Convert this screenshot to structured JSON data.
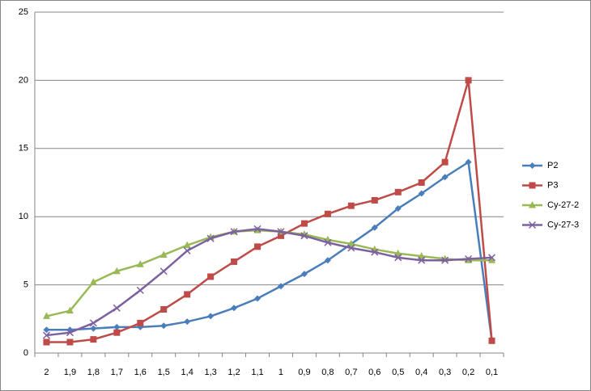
{
  "chart_data": {
    "type": "line",
    "categories": [
      "2",
      "1,9",
      "1,8",
      "1,7",
      "1,6",
      "1,5",
      "1,4",
      "1,3",
      "1,2",
      "1,1",
      "1",
      "0,9",
      "0,8",
      "0,7",
      "0,6",
      "0,5",
      "0,4",
      "0,3",
      "0,2",
      "0,1"
    ],
    "series": [
      {
        "name": "P2",
        "color": "#4a7ebb",
        "marker": "diamond",
        "values": [
          1.7,
          1.7,
          1.8,
          1.9,
          1.9,
          2.0,
          2.3,
          2.7,
          3.3,
          4.0,
          4.9,
          5.8,
          6.8,
          8.0,
          9.2,
          10.6,
          11.7,
          12.9,
          14.0,
          0.9
        ]
      },
      {
        "name": "P3",
        "color": "#be4b48",
        "marker": "square",
        "values": [
          0.8,
          0.8,
          1.0,
          1.5,
          2.2,
          3.2,
          4.3,
          5.6,
          6.7,
          7.8,
          8.6,
          9.5,
          10.2,
          10.8,
          11.2,
          11.8,
          12.5,
          14.0,
          20.0,
          0.9
        ]
      },
      {
        "name": "Cy-27-2",
        "color": "#98b954",
        "marker": "triangle",
        "values": [
          2.7,
          3.1,
          5.2,
          6.0,
          6.5,
          7.2,
          7.9,
          8.5,
          8.9,
          9.0,
          8.9,
          8.7,
          8.3,
          8.0,
          7.6,
          7.3,
          7.1,
          6.9,
          6.8,
          6.8
        ]
      },
      {
        "name": "Cy-27-3",
        "color": "#7d60a0",
        "marker": "x",
        "values": [
          1.3,
          1.5,
          2.2,
          3.3,
          4.6,
          6.0,
          7.5,
          8.4,
          8.9,
          9.1,
          8.9,
          8.6,
          8.1,
          7.7,
          7.4,
          7.0,
          6.8,
          6.8,
          6.9,
          7.0
        ]
      }
    ],
    "ylim": [
      0,
      25
    ],
    "yticks": [
      0,
      5,
      10,
      15,
      20,
      25
    ],
    "grid": true,
    "legend": "right"
  }
}
